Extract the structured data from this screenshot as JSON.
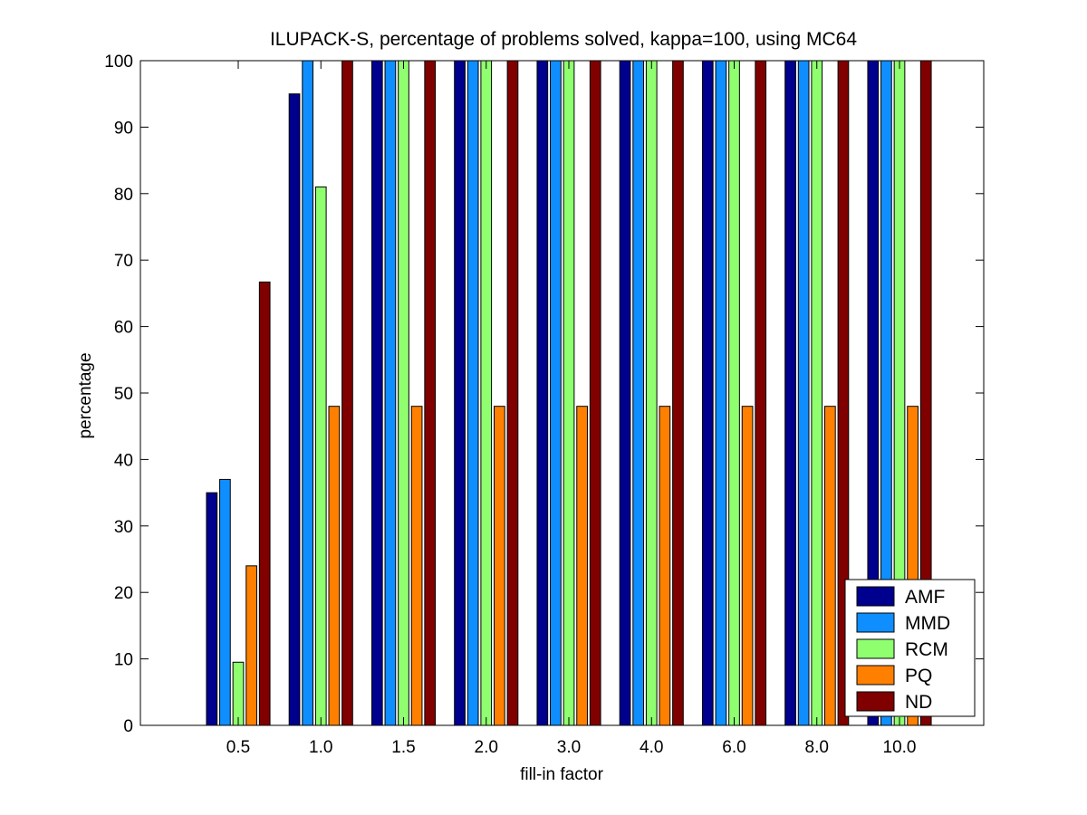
{
  "chart_data": {
    "type": "bar",
    "title": "ILUPACK-S, percentage of problems solved, kappa=100, using MC64",
    "xlabel": "fill-in factor",
    "ylabel": "percentage",
    "ylim": [
      0,
      100
    ],
    "yticks": [
      0,
      10,
      20,
      30,
      40,
      50,
      60,
      70,
      80,
      90,
      100
    ],
    "categories": [
      "0.5",
      "1.0",
      "1.5",
      "2.0",
      "3.0",
      "4.0",
      "6.0",
      "8.0",
      "10.0"
    ],
    "series": [
      {
        "name": "AMF",
        "color": "#00008f",
        "values": [
          35,
          95,
          100,
          100,
          100,
          100,
          100,
          100,
          100
        ]
      },
      {
        "name": "MMD",
        "color": "#0f8fff",
        "values": [
          37,
          100,
          100,
          100,
          100,
          100,
          100,
          100,
          100
        ]
      },
      {
        "name": "RCM",
        "color": "#8fff70",
        "values": [
          9.5,
          81,
          100,
          100,
          100,
          100,
          100,
          100,
          100
        ]
      },
      {
        "name": "PQ",
        "color": "#ff8000",
        "values": [
          24,
          48,
          48,
          48,
          48,
          48,
          48,
          48,
          48
        ]
      },
      {
        "name": "ND",
        "color": "#800000",
        "values": [
          66.7,
          100,
          100,
          100,
          100,
          100,
          100,
          100,
          100
        ]
      }
    ],
    "legend_position": "bottom-right",
    "grid": false
  }
}
